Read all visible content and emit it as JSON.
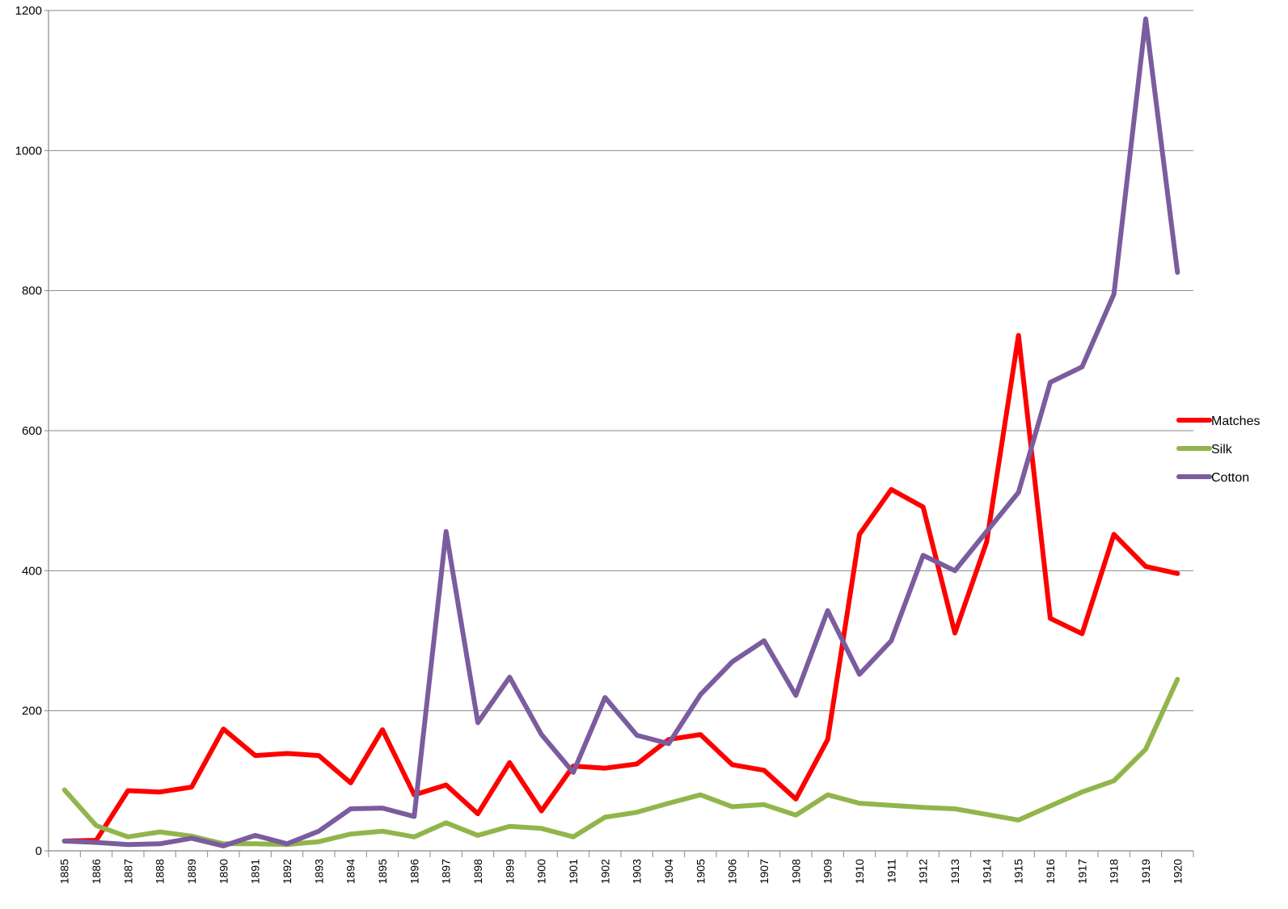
{
  "chart_data": {
    "type": "line",
    "title": "",
    "xlabel": "",
    "ylabel": "",
    "ylim": [
      0,
      1200
    ],
    "yticks": [
      0,
      200,
      400,
      600,
      800,
      1000,
      1200
    ],
    "grid": true,
    "legend_position": "right",
    "categories": [
      "1885",
      "1886",
      "1887",
      "1888",
      "1889",
      "1890",
      "1891",
      "1892",
      "1893",
      "1894",
      "1895",
      "1896",
      "1897",
      "1898",
      "1899",
      "1900",
      "1901",
      "1902",
      "1903",
      "1904",
      "1905",
      "1906",
      "1907",
      "1908",
      "1909",
      "1910",
      "1911",
      "1912",
      "1913",
      "1914",
      "1915",
      "1916",
      "1917",
      "1918",
      "1919",
      "1920"
    ],
    "series": [
      {
        "name": "Matches",
        "color": "#ff0000",
        "values": [
          14,
          15,
          86,
          84,
          91,
          174,
          136,
          139,
          136,
          97,
          173,
          80,
          94,
          53,
          126,
          57,
          121,
          118,
          124,
          159,
          166,
          123,
          115,
          74,
          159,
          452,
          516,
          491,
          311,
          441,
          736,
          332,
          310,
          452,
          406,
          396
        ]
      },
      {
        "name": "Silk",
        "color": "#92b54b",
        "values": [
          87,
          36,
          20,
          27,
          21,
          10,
          10,
          9,
          13,
          24,
          28,
          20,
          40,
          22,
          35,
          32,
          20,
          48,
          55,
          68,
          80,
          63,
          66,
          51,
          80,
          68,
          65,
          62,
          60,
          52,
          44,
          64,
          84,
          100,
          145,
          245
        ]
      },
      {
        "name": "Cotton",
        "color": "#7b5c9e",
        "values": [
          14,
          12,
          9,
          10,
          18,
          7,
          22,
          10,
          28,
          60,
          61,
          49,
          456,
          183,
          248,
          166,
          112,
          219,
          165,
          153,
          223,
          270,
          300,
          222,
          343,
          252,
          300,
          422,
          400,
          456,
          512,
          669,
          691,
          795,
          1188,
          826
        ]
      }
    ]
  }
}
